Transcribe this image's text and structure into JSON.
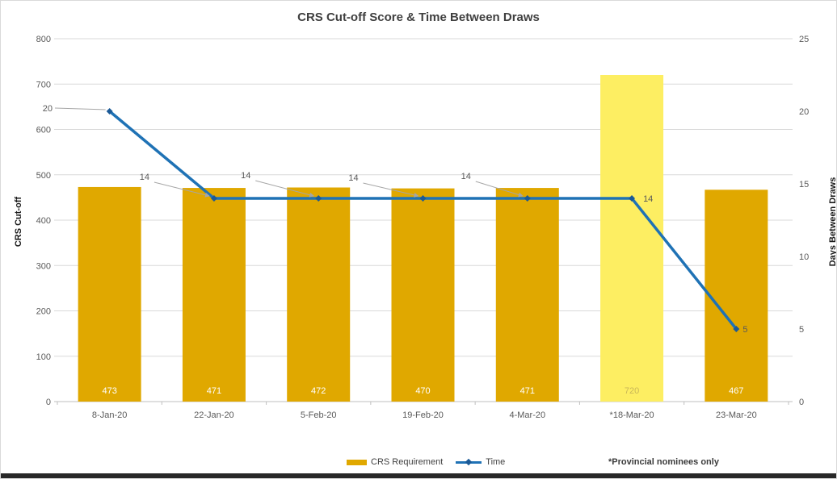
{
  "title": "CRS Cut-off Score & Time Between Draws",
  "chart_data": {
    "type": "combo-bar-line",
    "categories": [
      "8-Jan-20",
      "22-Jan-20",
      "5-Feb-20",
      "19-Feb-20",
      "4-Mar-20",
      "*18-Mar-20",
      "23-Mar-20"
    ],
    "series": [
      {
        "name": "CRS Requirement",
        "type": "bar",
        "axis": "left",
        "values": [
          473,
          471,
          472,
          470,
          471,
          720,
          467
        ]
      },
      {
        "name": "Time",
        "type": "line",
        "axis": "right",
        "values": [
          20,
          14,
          14,
          14,
          14,
          14,
          5
        ]
      }
    ],
    "left_axis": {
      "title": "CRS Cut-off",
      "min": 0,
      "max": 800,
      "step": 100
    },
    "right_axis": {
      "title": "Days Between Draws",
      "min": 0,
      "max": 25,
      "step": 5
    },
    "highlight_category_index": 5,
    "grid": true,
    "legend_position": "bottom"
  },
  "legend": {
    "items": [
      {
        "label": "CRS Requirement",
        "swatch": "bar"
      },
      {
        "label": "Time",
        "swatch": "line"
      }
    ]
  },
  "annotation": "*Provincial nominees only",
  "colors": {
    "bar": "#E0A800",
    "bar_highlight": "#FDEE62",
    "bar_label": "#FFFFFF",
    "bar_label_highlight": "#C9B758",
    "line": "#1F72B5",
    "line_marker": "#1B5A97",
    "grid": "#D9D9D9",
    "axis_line": "#BFBFBF",
    "axis_text": "#595959",
    "callout_text": "#595959",
    "leader": "#A6A6A6"
  }
}
